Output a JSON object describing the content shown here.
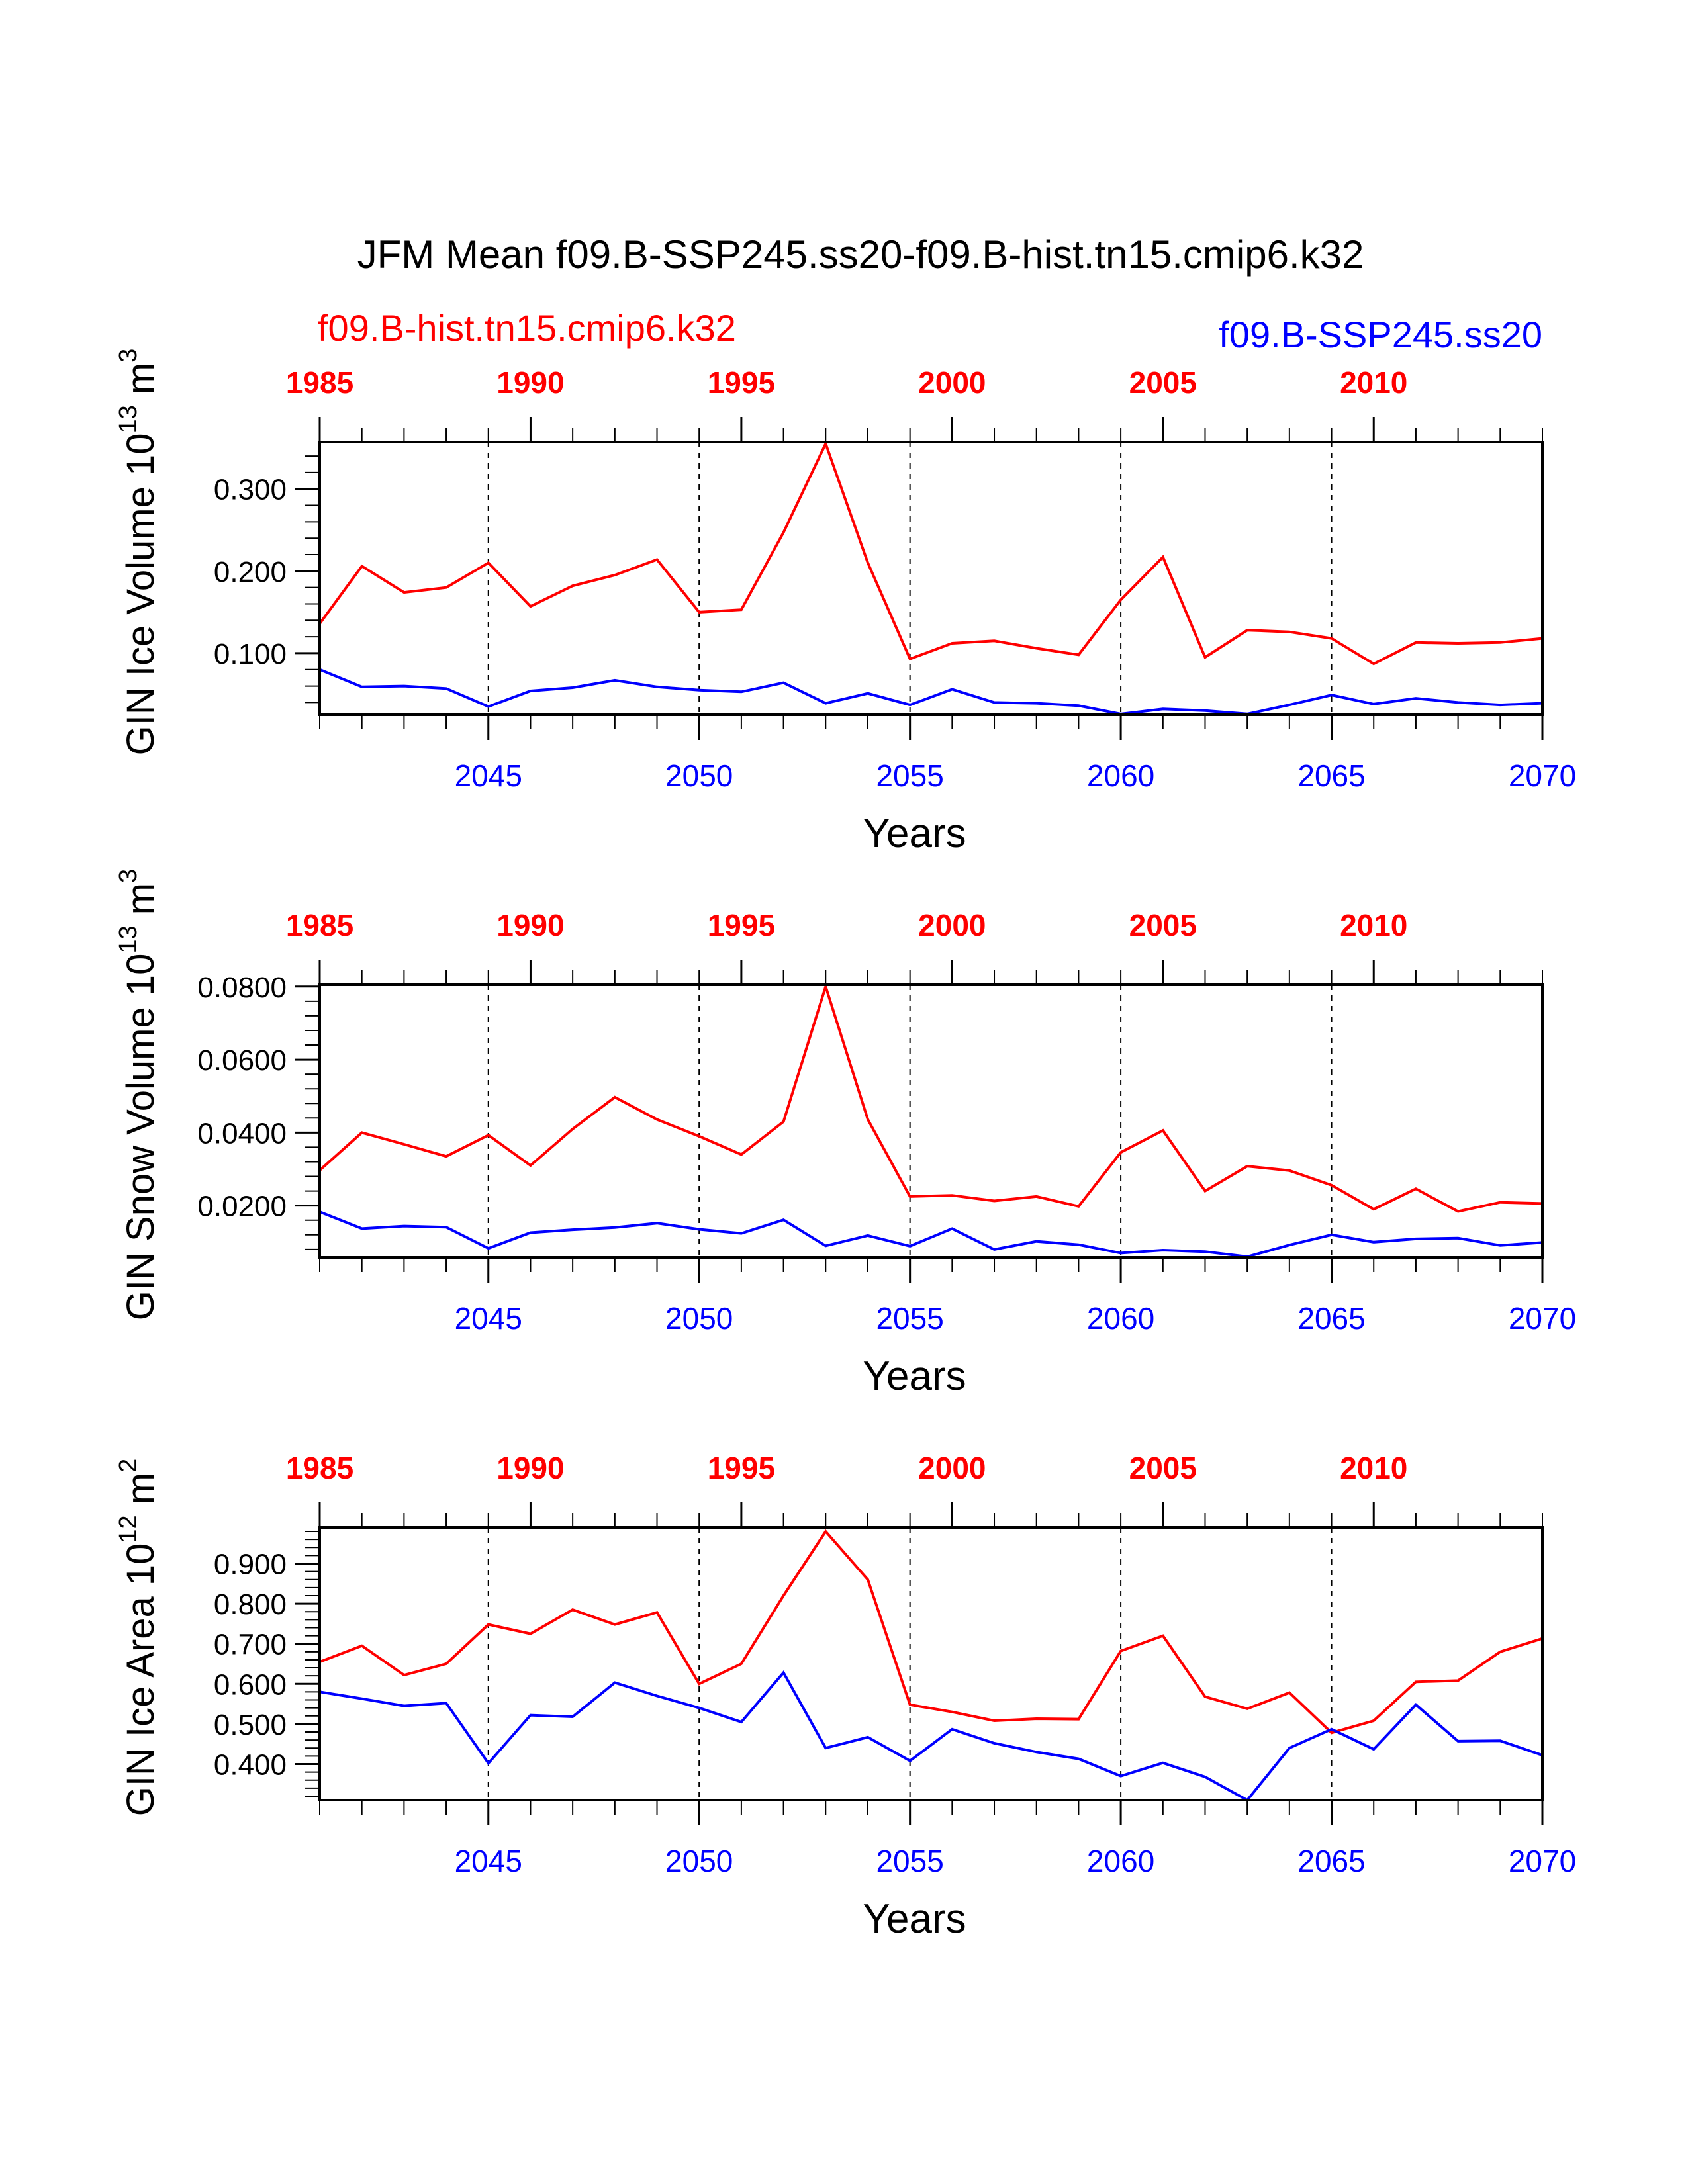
{
  "title": "JFM Mean f09.B-SSP245.ss20-f09.B-hist.tn15.cmip6.k32",
  "left_label": "f09.B-hist.tn15.cmip6.k32",
  "right_label": "f09.B-SSP245.ss20",
  "colors": {
    "hist": "#ff0000",
    "ssp": "#0000ff",
    "axis": "#000000"
  },
  "chart_data": [
    {
      "type": "line",
      "ylabel": "GIN Ice Volume 10",
      "ylabel_exp": "13",
      "ylabel_unit": " m",
      "ylabel_unit_exp": "3",
      "xlabel": "Years",
      "ylim": [
        0.025,
        0.357
      ],
      "yticks": [
        0.1,
        0.2,
        0.3
      ],
      "ytick_labels": [
        "0.100",
        "0.200",
        "0.300"
      ],
      "ssp_ticks": [
        2045,
        2050,
        2055,
        2060,
        2065,
        2070
      ],
      "hist_ticks": [
        1985,
        1990,
        1995,
        2000,
        2005,
        2010
      ],
      "grid": "dashed vertical at 5-year ticks",
      "x_ssp": [
        2041,
        2042,
        2043,
        2044,
        2045,
        2046,
        2047,
        2048,
        2049,
        2050,
        2051,
        2052,
        2053,
        2054,
        2055,
        2056,
        2057,
        2058,
        2059,
        2060,
        2061,
        2062,
        2063,
        2064,
        2065,
        2066,
        2067,
        2068,
        2069,
        2070
      ],
      "x_hist": [
        1985,
        1986,
        1987,
        1988,
        1989,
        1990,
        1991,
        1992,
        1993,
        1994,
        1995,
        1996,
        1997,
        1998,
        1999,
        2000,
        2001,
        2002,
        2003,
        2004,
        2005,
        2006,
        2007,
        2008,
        2009,
        2010,
        2011,
        2012,
        2013,
        2014
      ],
      "series": [
        {
          "name": "f09.B-hist.tn15.cmip6.k32",
          "axis": "hist",
          "values": [
            0.136,
            0.206,
            0.174,
            0.18,
            0.21,
            0.157,
            0.182,
            0.195,
            0.214,
            0.15,
            0.153,
            0.247,
            0.355,
            0.21,
            0.093,
            0.112,
            0.115,
            0.106,
            0.098,
            0.165,
            0.217,
            0.095,
            0.128,
            0.126,
            0.118,
            0.087,
            0.113,
            0.112,
            0.113,
            0.118
          ]
        },
        {
          "name": "f09.B-SSP245.ss20",
          "axis": "ssp",
          "values": [
            0.08,
            0.059,
            0.06,
            0.057,
            0.035,
            0.054,
            0.058,
            0.067,
            0.059,
            0.055,
            0.053,
            0.064,
            0.039,
            0.051,
            0.037,
            0.056,
            0.04,
            0.039,
            0.036,
            0.026,
            0.032,
            0.03,
            0.026,
            0.037,
            0.049,
            0.038,
            0.045,
            0.04,
            0.037,
            0.039
          ]
        }
      ]
    },
    {
      "type": "line",
      "ylabel": "GIN Snow Volume 10",
      "ylabel_exp": "13",
      "ylabel_unit": " m",
      "ylabel_unit_exp": "3",
      "xlabel": "Years",
      "ylim": [
        0.0058,
        0.0805
      ],
      "yticks": [
        0.02,
        0.04,
        0.06,
        0.08
      ],
      "ytick_labels": [
        "0.0200",
        "0.0400",
        "0.0600",
        "0.0800"
      ],
      "ssp_ticks": [
        2045,
        2050,
        2055,
        2060,
        2065,
        2070
      ],
      "hist_ticks": [
        1985,
        1990,
        1995,
        2000,
        2005,
        2010
      ],
      "grid": "dashed vertical at 5-year ticks",
      "x_ssp": [
        2041,
        2042,
        2043,
        2044,
        2045,
        2046,
        2047,
        2048,
        2049,
        2050,
        2051,
        2052,
        2053,
        2054,
        2055,
        2056,
        2057,
        2058,
        2059,
        2060,
        2061,
        2062,
        2063,
        2064,
        2065,
        2066,
        2067,
        2068,
        2069,
        2070
      ],
      "x_hist": [
        1985,
        1986,
        1987,
        1988,
        1989,
        1990,
        1991,
        1992,
        1993,
        1994,
        1995,
        1996,
        1997,
        1998,
        1999,
        2000,
        2001,
        2002,
        2003,
        2004,
        2005,
        2006,
        2007,
        2008,
        2009,
        2010,
        2011,
        2012,
        2013,
        2014
      ],
      "series": [
        {
          "name": "f09.B-hist.tn15.cmip6.k32",
          "axis": "hist",
          "values": [
            0.0297,
            0.04,
            0.0368,
            0.0335,
            0.0393,
            0.031,
            0.041,
            0.0497,
            0.0436,
            0.039,
            0.034,
            0.043,
            0.08,
            0.0436,
            0.0225,
            0.0228,
            0.0213,
            0.0225,
            0.0198,
            0.0346,
            0.0406,
            0.024,
            0.0308,
            0.0296,
            0.0256,
            0.019,
            0.0246,
            0.0184,
            0.0209,
            0.0206
          ]
        },
        {
          "name": "f09.B-SSP245.ss20",
          "axis": "ssp",
          "values": [
            0.0183,
            0.0137,
            0.0144,
            0.0141,
            0.0083,
            0.0126,
            0.0134,
            0.014,
            0.0152,
            0.0135,
            0.0124,
            0.0161,
            0.009,
            0.0118,
            0.0089,
            0.0137,
            0.008,
            0.0102,
            0.0093,
            0.007,
            0.0078,
            0.0074,
            0.006,
            0.0092,
            0.012,
            0.01,
            0.0109,
            0.0111,
            0.0091,
            0.0099
          ]
        }
      ]
    },
    {
      "type": "line",
      "ylabel": "GIN Ice Area 10",
      "ylabel_exp": "12",
      "ylabel_unit": " m",
      "ylabel_unit_exp": "2",
      "xlabel": "Years",
      "ylim": [
        0.31,
        0.99
      ],
      "yticks": [
        0.4,
        0.5,
        0.6,
        0.7,
        0.8,
        0.9
      ],
      "ytick_labels": [
        "0.400",
        "0.500",
        "0.600",
        "0.700",
        "0.800",
        "0.900"
      ],
      "ssp_ticks": [
        2045,
        2050,
        2055,
        2060,
        2065,
        2070
      ],
      "hist_ticks": [
        1985,
        1990,
        1995,
        2000,
        2005,
        2010
      ],
      "grid": "dashed vertical at 5-year ticks",
      "x_ssp": [
        2041,
        2042,
        2043,
        2044,
        2045,
        2046,
        2047,
        2048,
        2049,
        2050,
        2051,
        2052,
        2053,
        2054,
        2055,
        2056,
        2057,
        2058,
        2059,
        2060,
        2061,
        2062,
        2063,
        2064,
        2065,
        2066,
        2067,
        2068,
        2069,
        2070
      ],
      "x_hist": [
        1985,
        1986,
        1987,
        1988,
        1989,
        1990,
        1991,
        1992,
        1993,
        1994,
        1995,
        1996,
        1997,
        1998,
        1999,
        2000,
        2001,
        2002,
        2003,
        2004,
        2005,
        2006,
        2007,
        2008,
        2009,
        2010,
        2011,
        2012,
        2013,
        2014
      ],
      "series": [
        {
          "name": "f09.B-hist.tn15.cmip6.k32",
          "axis": "hist",
          "values": [
            0.655,
            0.695,
            0.622,
            0.65,
            0.748,
            0.725,
            0.785,
            0.748,
            0.778,
            0.6,
            0.65,
            0.82,
            0.98,
            0.86,
            0.548,
            0.53,
            0.508,
            0.513,
            0.512,
            0.682,
            0.72,
            0.568,
            0.538,
            0.578,
            0.478,
            0.508,
            0.605,
            0.608,
            0.68,
            0.713
          ]
        },
        {
          "name": "f09.B-SSP245.ss20",
          "axis": "ssp",
          "values": [
            0.58,
            0.563,
            0.545,
            0.552,
            0.402,
            0.522,
            0.518,
            0.603,
            0.57,
            0.54,
            0.505,
            0.628,
            0.44,
            0.467,
            0.408,
            0.487,
            0.452,
            0.43,
            0.413,
            0.37,
            0.403,
            0.368,
            0.31,
            0.44,
            0.487,
            0.437,
            0.548,
            0.457,
            0.458,
            0.422
          ]
        }
      ]
    }
  ]
}
